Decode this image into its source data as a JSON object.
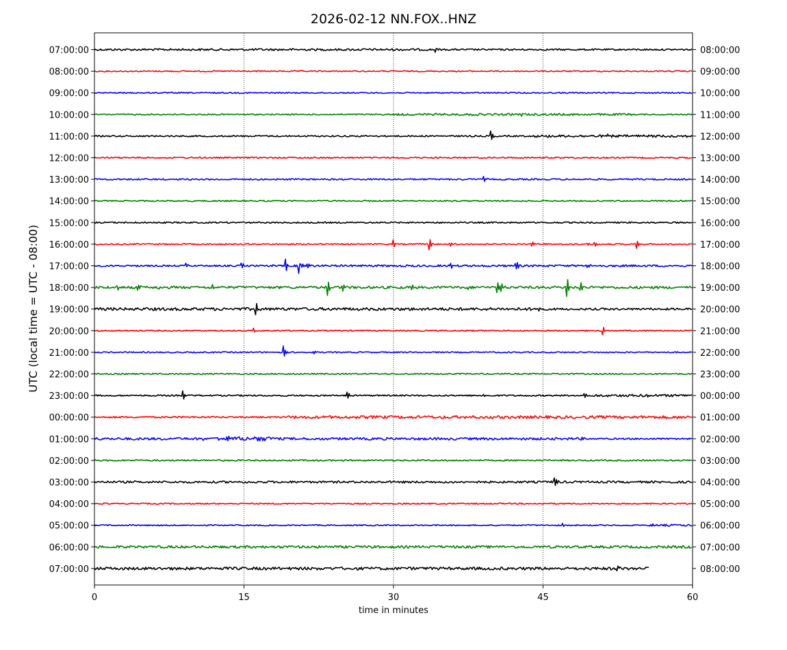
{
  "chart_data": {
    "type": "line",
    "title": "2026-02-12 NN.FOX..HNZ",
    "xlabel": "time in minutes",
    "ylabel": "UTC (local time = UTC - 08:00)",
    "xlim": [
      0,
      60
    ],
    "x_ticks": [
      0,
      15,
      30,
      45,
      60
    ],
    "x_tick_labels": [
      "0",
      "15",
      "30",
      "45",
      "60"
    ],
    "vertical_gridlines": [
      15,
      30,
      45
    ],
    "grid_style": "dotted",
    "colors": [
      "#000000",
      "#ff0000",
      "#0000ff",
      "#008000"
    ],
    "left_labels": [
      "07:00:00",
      "08:00:00",
      "09:00:00",
      "10:00:00",
      "11:00:00",
      "12:00:00",
      "13:00:00",
      "14:00:00",
      "15:00:00",
      "16:00:00",
      "17:00:00",
      "18:00:00",
      "19:00:00",
      "20:00:00",
      "21:00:00",
      "22:00:00",
      "23:00:00",
      "00:00:00",
      "01:00:00",
      "02:00:00",
      "03:00:00",
      "04:00:00",
      "05:00:00",
      "06:00:00",
      "07:00:00"
    ],
    "right_labels": [
      "08:00:00",
      "09:00:00",
      "10:00:00",
      "11:00:00",
      "12:00:00",
      "13:00:00",
      "14:00:00",
      "15:00:00",
      "16:00:00",
      "17:00:00",
      "18:00:00",
      "19:00:00",
      "20:00:00",
      "21:00:00",
      "22:00:00",
      "23:00:00",
      "00:00:00",
      "01:00:00",
      "02:00:00",
      "03:00:00",
      "04:00:00",
      "05:00:00",
      "06:00:00",
      "07:00:00",
      "08:00:00"
    ],
    "traces": [
      {
        "noise": 2.0,
        "end": 60,
        "events": [
          {
            "t": 34.3,
            "amp": 5
          }
        ],
        "noisy_segments": [
          [
            0,
            34,
            2.5
          ]
        ]
      },
      {
        "noise": 1.5,
        "end": 60,
        "events": [],
        "noisy_segments": []
      },
      {
        "noise": 1.5,
        "end": 60,
        "events": [],
        "noisy_segments": []
      },
      {
        "noise": 1.5,
        "end": 60,
        "events": [
          {
            "t": 38.0,
            "amp": 3
          },
          {
            "t": 42.8,
            "amp": 2
          }
        ],
        "noisy_segments": [
          [
            30,
            54,
            2.5
          ]
        ]
      },
      {
        "noise": 1.8,
        "end": 60,
        "events": [
          {
            "t": 39.8,
            "amp": 8
          },
          {
            "t": 51.5,
            "amp": 3
          }
        ],
        "noisy_segments": [
          [
            44,
            60,
            3
          ]
        ]
      },
      {
        "noise": 1.8,
        "end": 60,
        "events": [],
        "noisy_segments": []
      },
      {
        "noise": 1.8,
        "end": 60,
        "events": [
          {
            "t": 39.1,
            "amp": 5
          }
        ],
        "noisy_segments": []
      },
      {
        "noise": 1.6,
        "end": 60,
        "events": [],
        "noisy_segments": []
      },
      {
        "noise": 1.8,
        "end": 60,
        "events": [],
        "noisy_segments": []
      },
      {
        "noise": 1.6,
        "end": 60,
        "events": [
          {
            "t": 30.0,
            "amp": 6
          },
          {
            "t": 33.7,
            "amp": 9
          },
          {
            "t": 35.7,
            "amp": 3
          },
          {
            "t": 44.0,
            "amp": 3
          },
          {
            "t": 45.0,
            "amp": 2
          },
          {
            "t": 49.5,
            "amp": 3
          },
          {
            "t": 50.2,
            "amp": 3
          },
          {
            "t": 52.0,
            "amp": 2
          },
          {
            "t": 54.5,
            "amp": 6
          }
        ],
        "noisy_segments": []
      },
      {
        "noise": 2.0,
        "end": 60,
        "events": [
          {
            "t": 9.2,
            "amp": 4
          },
          {
            "t": 14.8,
            "amp": 5
          },
          {
            "t": 17.6,
            "amp": 5
          },
          {
            "t": 19.2,
            "amp": 9
          },
          {
            "t": 20.6,
            "amp": 24
          },
          {
            "t": 21.4,
            "amp": 5
          },
          {
            "t": 35.8,
            "amp": 4
          },
          {
            "t": 42.3,
            "amp": 9
          },
          {
            "t": 49.4,
            "amp": 4
          },
          {
            "t": 59.0,
            "amp": 2
          }
        ],
        "noisy_segments": [
          [
            20,
            60,
            2.5
          ]
        ]
      },
      {
        "noise": 2.2,
        "end": 60,
        "events": [
          {
            "t": 2.3,
            "amp": 4
          },
          {
            "t": 4.3,
            "amp": 5
          },
          {
            "t": 6.6,
            "amp": 3
          },
          {
            "t": 11.9,
            "amp": 4
          },
          {
            "t": 23.5,
            "amp": 12
          },
          {
            "t": 24.9,
            "amp": 8
          },
          {
            "t": 31.8,
            "amp": 5
          },
          {
            "t": 37.6,
            "amp": 4
          },
          {
            "t": 40.5,
            "amp": 6
          },
          {
            "t": 40.9,
            "amp": 8
          },
          {
            "t": 47.5,
            "amp": 13
          },
          {
            "t": 48.7,
            "amp": 22
          }
        ],
        "noisy_segments": [
          [
            0,
            60,
            3
          ]
        ]
      },
      {
        "noise": 2.5,
        "end": 60,
        "events": [
          {
            "t": 16.3,
            "amp": 9
          },
          {
            "t": 44.7,
            "amp": 5
          }
        ],
        "noisy_segments": [
          [
            0,
            44.5,
            3.5
          ]
        ]
      },
      {
        "noise": 1.5,
        "end": 60,
        "events": [
          {
            "t": 16.0,
            "amp": 3
          },
          {
            "t": 51.1,
            "amp": 7
          }
        ],
        "noisy_segments": []
      },
      {
        "noise": 1.5,
        "end": 60,
        "events": [
          {
            "t": 19.0,
            "amp": 9
          },
          {
            "t": 22.0,
            "amp": 2
          }
        ],
        "noisy_segments": []
      },
      {
        "noise": 1.6,
        "end": 60,
        "events": [],
        "noisy_segments": []
      },
      {
        "noise": 1.8,
        "end": 60,
        "events": [
          {
            "t": 8.9,
            "amp": 7
          },
          {
            "t": 25.4,
            "amp": 6
          },
          {
            "t": 39.1,
            "amp": 2
          },
          {
            "t": 49.2,
            "amp": 7
          },
          {
            "t": 55.3,
            "amp": 4
          }
        ],
        "noisy_segments": [
          [
            49,
            60,
            3
          ]
        ]
      },
      {
        "noise": 2.0,
        "end": 60,
        "events": [],
        "noisy_segments": [
          [
            19,
            60,
            3.5
          ]
        ]
      },
      {
        "noise": 2.0,
        "end": 60,
        "events": [
          {
            "t": 10.9,
            "amp": 4
          },
          {
            "t": 13.5,
            "amp": 3
          },
          {
            "t": 16.5,
            "amp": 4
          },
          {
            "t": 48.8,
            "amp": 4
          }
        ],
        "noisy_segments": [
          [
            0,
            48.6,
            3
          ],
          [
            12,
            18,
            5
          ]
        ]
      },
      {
        "noise": 1.8,
        "end": 60,
        "events": [],
        "noisy_segments": []
      },
      {
        "noise": 2.0,
        "end": 60,
        "events": [
          {
            "t": 46.2,
            "amp": 8
          }
        ],
        "noisy_segments": [
          [
            0,
            60,
            2.5
          ]
        ]
      },
      {
        "noise": 1.6,
        "end": 60,
        "events": [],
        "noisy_segments": []
      },
      {
        "noise": 1.5,
        "end": 60,
        "events": [
          {
            "t": 47.0,
            "amp": 2
          },
          {
            "t": 55.7,
            "amp": 7
          }
        ],
        "noisy_segments": [
          [
            56,
            60,
            2.5
          ]
        ]
      },
      {
        "noise": 2.8,
        "end": 60,
        "events": [],
        "noisy_segments": [
          [
            0,
            60,
            3
          ]
        ]
      },
      {
        "noise": 3.0,
        "end": 55.7,
        "events": [
          {
            "t": 52.4,
            "amp": 7
          }
        ],
        "noisy_segments": [
          [
            0,
            55.7,
            3.5
          ]
        ]
      }
    ]
  }
}
